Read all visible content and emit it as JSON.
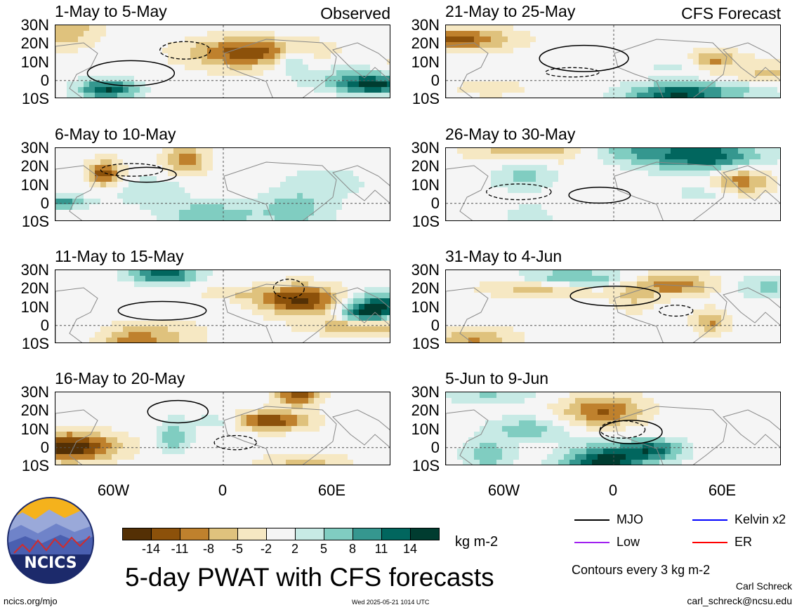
{
  "panels": [
    {
      "title": "1-May to 5-May",
      "tag": "Observed",
      "seed": 1
    },
    {
      "title": "6-May to 10-May",
      "tag": "",
      "seed": 2
    },
    {
      "title": "11-May to 15-May",
      "tag": "",
      "seed": 3
    },
    {
      "title": "16-May to 20-May",
      "tag": "",
      "seed": 4
    },
    {
      "title": "21-May to 25-May",
      "tag": "CFS Forecast",
      "seed": 5
    },
    {
      "title": "26-May to 30-May",
      "tag": "",
      "seed": 6
    },
    {
      "title": "31-May to 4-Jun",
      "tag": "",
      "seed": 7
    },
    {
      "title": "5-Jun to 9-Jun",
      "tag": "",
      "seed": 8
    }
  ],
  "lat_labels": [
    "30N",
    "20N",
    "10N",
    "0",
    "10S"
  ],
  "lon_labels": [
    "60W",
    "0",
    "60E"
  ],
  "colorbar": {
    "colors": [
      "#543005",
      "#8c510a",
      "#bf812d",
      "#dfc27d",
      "#f6e8c3",
      "#f5f5f5",
      "#c7eae5",
      "#80cdc1",
      "#35978f",
      "#01665e",
      "#003c30"
    ],
    "ticks": [
      "-14",
      "-11",
      "-8",
      "-5",
      "-2",
      "2",
      "5",
      "8",
      "11",
      "14"
    ],
    "units": "kg m-2"
  },
  "legend": [
    {
      "label": "MJO",
      "color": "#000000"
    },
    {
      "label": "Kelvin x2",
      "color": "#0000ff"
    },
    {
      "label": "Low",
      "color": "#a020f0"
    },
    {
      "label": "ER",
      "color": "#ff0000"
    }
  ],
  "title": "5-day PWAT with CFS forecasts",
  "contour_note": "Contours every 3 kg m-2",
  "author": "Carl Schreck",
  "email": "carl_schreck@ncsu.edu",
  "website": "ncics.org/mjo",
  "timestamp": "Wed 2025-05-21 1014 UTC",
  "logo_text": "NCICS",
  "chart_data": {
    "type": "heatmap",
    "variable": "5-day PWAT with CFS forecasts",
    "units": "kg m-2",
    "levels": [
      -14,
      -11,
      -8,
      -5,
      -2,
      2,
      5,
      8,
      11,
      14
    ],
    "ylim_lat": [
      -10,
      30
    ],
    "xlim_lon": [
      -90,
      90
    ],
    "periods": [
      "1-May to 5-May",
      "6-May to 10-May",
      "11-May to 15-May",
      "16-May to 20-May",
      "21-May to 25-May",
      "26-May to 30-May",
      "31-May to 4-Jun",
      "5-Jun to 9-Jun"
    ],
    "sources": [
      "Observed",
      "Observed",
      "Observed",
      "Observed",
      "CFS Forecast",
      "CFS Forecast",
      "CFS Forecast",
      "CFS Forecast"
    ]
  }
}
